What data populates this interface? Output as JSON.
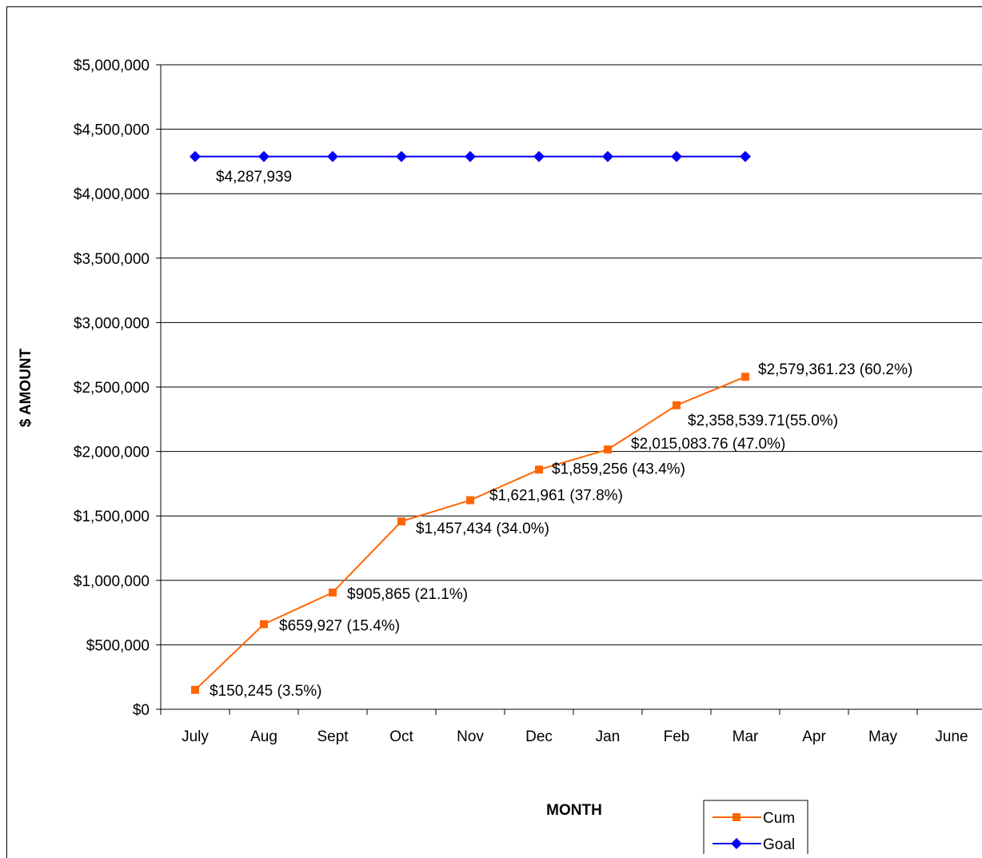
{
  "chart_data": {
    "type": "line",
    "title": "",
    "xlabel": "MONTH",
    "ylabel": "$ AMOUNT",
    "categories": [
      "July",
      "Aug",
      "Sept",
      "Oct",
      "Nov",
      "Dec",
      "Jan",
      "Feb",
      "Mar",
      "Apr",
      "May",
      "June"
    ],
    "ylim": [
      0,
      5000000
    ],
    "yticks": [
      0,
      500000,
      1000000,
      1500000,
      2000000,
      2500000,
      3000000,
      3500000,
      4000000,
      4500000,
      5000000
    ],
    "ytick_labels": [
      "$0",
      "$500,000",
      "$1,000,000",
      "$1,500,000",
      "$2,000,000",
      "$2,500,000",
      "$3,000,000",
      "$3,500,000",
      "$4,000,000",
      "$4,500,000",
      "$5,000,000"
    ],
    "grid": "horizontal",
    "legend_position": "bottom-right",
    "series": [
      {
        "name": "Cum",
        "color": "#ff6600",
        "marker": "square",
        "values": [
          150245,
          659927,
          905865,
          1457434,
          1621961,
          1859256,
          2015083.76,
          2358539.71,
          2579361.23,
          null,
          null,
          null
        ],
        "labels": [
          "$150,245 (3.5%)",
          "$659,927 (15.4%)",
          "$905,865 (21.1%)",
          "$1,457,434 (34.0%)",
          "$1,621,961 (37.8%)",
          "$1,859,256 (43.4%)",
          "$2,015,083.76 (47.0%)",
          "$2,358,539.71(55.0%)",
          "$2,579,361.23 (60.2%)",
          "",
          "",
          ""
        ]
      },
      {
        "name": "Goal",
        "color": "#0000ff",
        "marker": "diamond",
        "values": [
          4287939,
          4287939,
          4287939,
          4287939,
          4287939,
          4287939,
          4287939,
          4287939,
          4287939,
          null,
          null,
          null
        ],
        "labels": [
          "$4,287,939",
          "",
          "",
          "",
          "",
          "",
          "",
          "",
          "",
          "",
          "",
          ""
        ]
      }
    ]
  }
}
